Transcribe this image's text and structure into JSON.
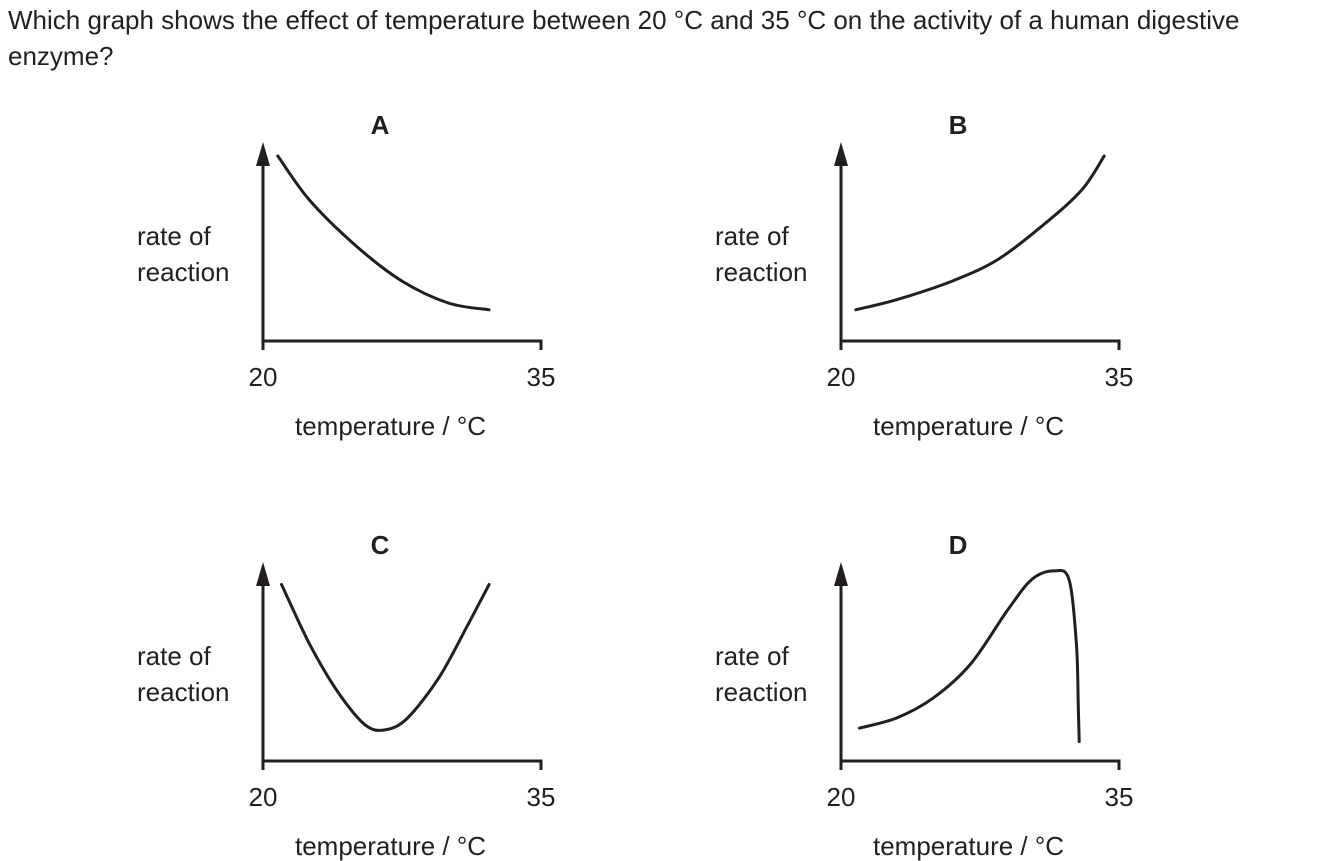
{
  "question": {
    "text": "Which graph shows the effect of temperature between 20 °C and 35 °C on the activity of a human digestive enzyme?"
  },
  "colors": {
    "ink": "#231f20",
    "background": "#ffffff"
  },
  "chart_data": [
    {
      "type": "line",
      "panel_label": "A",
      "ylabel": "rate of\nreaction",
      "xlabel": "temperature / °C",
      "x_ticks": [
        "20",
        "35"
      ],
      "xlim": [
        20,
        35
      ],
      "ylim": [
        0,
        1
      ],
      "series": [
        {
          "x": [
            20.8,
            22.5,
            25,
            27.5,
            30,
            32.2
          ],
          "y": [
            1.0,
            0.74,
            0.47,
            0.26,
            0.13,
            0.09
          ]
        }
      ]
    },
    {
      "type": "line",
      "panel_label": "B",
      "ylabel": "rate of\nreaction",
      "xlabel": "temperature / °C",
      "x_ticks": [
        "20",
        "35"
      ],
      "xlim": [
        20,
        35
      ],
      "ylim": [
        0,
        1
      ],
      "series": [
        {
          "x": [
            20.8,
            23,
            26,
            28.5,
            31,
            33,
            34.2
          ],
          "y": [
            0.09,
            0.15,
            0.26,
            0.39,
            0.6,
            0.8,
            1.0
          ]
        }
      ]
    },
    {
      "type": "line",
      "panel_label": "C",
      "ylabel": "rate of\nreaction",
      "xlabel": "temperature / °C",
      "x_ticks": [
        "20",
        "35"
      ],
      "xlim": [
        20,
        35
      ],
      "ylim": [
        0,
        1
      ],
      "series": [
        {
          "x": [
            21,
            22.5,
            24,
            25.5,
            26.6,
            27.8,
            29.5,
            31,
            32.2
          ],
          "y": [
            0.95,
            0.6,
            0.32,
            0.12,
            0.09,
            0.16,
            0.4,
            0.7,
            0.95
          ]
        }
      ]
    },
    {
      "type": "line",
      "panel_label": "D",
      "ylabel": "rate of\nreaction",
      "xlabel": "temperature / °C",
      "x_ticks": [
        "20",
        "35"
      ],
      "xlim": [
        20,
        35
      ],
      "ylim": [
        0,
        1
      ],
      "series": [
        {
          "x": [
            21,
            23,
            25,
            27,
            29,
            30.3,
            31.5,
            32.3,
            32.7,
            32.8,
            32.85
          ],
          "y": [
            0.1,
            0.16,
            0.28,
            0.48,
            0.8,
            0.98,
            1.03,
            0.98,
            0.6,
            0.25,
            0.02
          ]
        }
      ]
    }
  ]
}
